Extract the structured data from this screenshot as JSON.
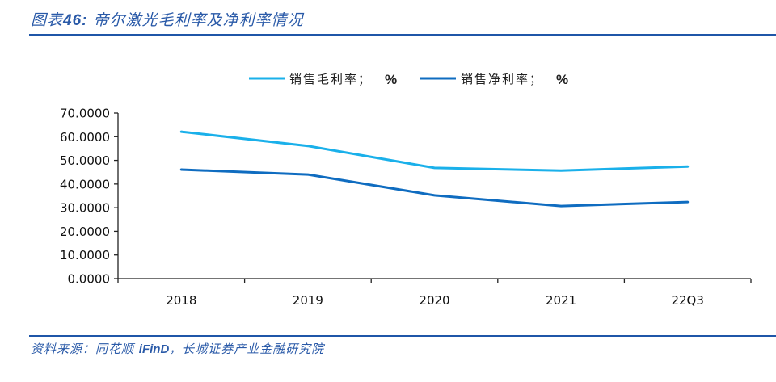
{
  "header": {
    "figure_label": "图表",
    "figure_number": "46:",
    "title": "帝尔激光毛利率及净利率情况"
  },
  "footer": {
    "source_prefix": "资料来源：同花顺 ",
    "source_brand": "iFinD",
    "source_suffix": "，长城证券产业金融研究院"
  },
  "chart_data": {
    "type": "line",
    "title": "帝尔激光毛利率及净利率情况",
    "xlabel": "",
    "ylabel": "",
    "categories": [
      "2018",
      "2019",
      "2020",
      "2021",
      "22Q3"
    ],
    "ylim": [
      0,
      70
    ],
    "yticks": [
      0,
      10,
      20,
      30,
      40,
      50,
      60,
      70
    ],
    "ytick_labels": [
      "0.0000",
      "10.0000",
      "20.0000",
      "30.0000",
      "40.0000",
      "50.0000",
      "60.0000",
      "70.0000"
    ],
    "grid": false,
    "legend_position": "top-center",
    "series": [
      {
        "name": "销售毛利率",
        "unit": "%",
        "color": "#1ab0ea",
        "values": [
          62.1,
          56.1,
          46.8,
          45.7,
          47.4
        ]
      },
      {
        "name": "销售净利率",
        "unit": "%",
        "color": "#0f6cc0",
        "values": [
          46.1,
          44.0,
          35.2,
          30.7,
          32.4
        ]
      }
    ]
  }
}
